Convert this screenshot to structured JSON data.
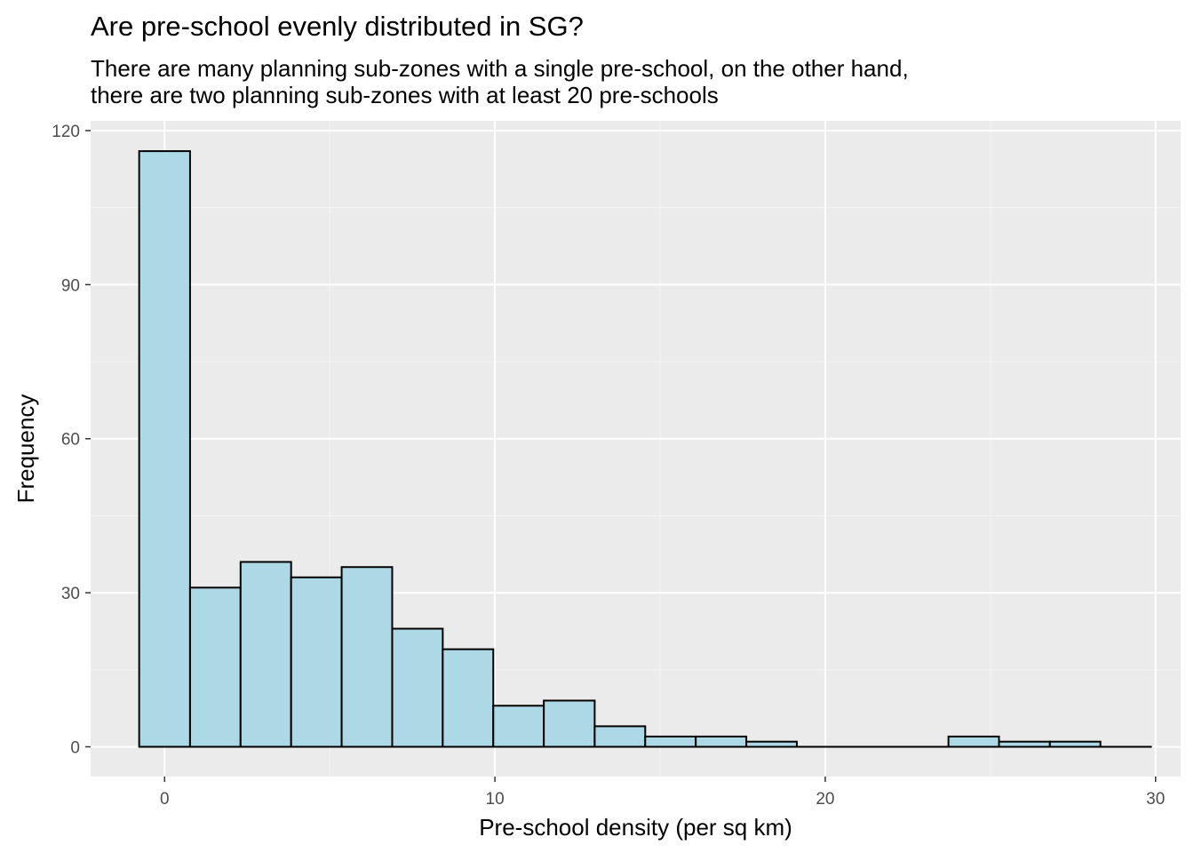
{
  "chart_data": {
    "type": "bar",
    "title": "Are pre-school evenly distributed in SG?",
    "subtitle_lines": [
      "There are many planning sub-zones with a single pre-school, on the other hand,",
      "there are two planning sub-zones with at least 20 pre-schools"
    ],
    "xlabel": "Pre-school density (per sq km)",
    "ylabel": "Frequency",
    "xlim": [
      -2.24,
      30.76
    ],
    "ylim": [
      -5.8,
      121.9
    ],
    "x_ticks": [
      0,
      10,
      20,
      30
    ],
    "x_tick_labels": [
      "0",
      "10",
      "20",
      "30"
    ],
    "y_ticks": [
      0,
      30,
      60,
      90,
      120
    ],
    "y_tick_labels": [
      "0",
      "30",
      "60",
      "90",
      "120"
    ],
    "grid": true,
    "bin_edges": [
      -0.77,
      0.77,
      2.3,
      3.83,
      5.36,
      6.89,
      8.42,
      9.95,
      11.48,
      13.02,
      14.55,
      16.08,
      17.61,
      19.14,
      20.67,
      22.2,
      23.73,
      25.26,
      26.8,
      28.33,
      29.86
    ],
    "values": [
      116,
      31,
      36,
      33,
      35,
      23,
      19,
      8,
      9,
      4,
      2,
      2,
      1,
      0,
      0,
      0,
      2,
      1,
      1,
      0
    ],
    "colors": {
      "panel_background": "#ebebeb",
      "grid_major": "#ffffff",
      "grid_minor": "#f5f5f5",
      "bar_fill": "#add8e6",
      "bar_outline": "#000000",
      "tick_text": "#4d4d4d",
      "tick_mark": "#333333"
    }
  }
}
